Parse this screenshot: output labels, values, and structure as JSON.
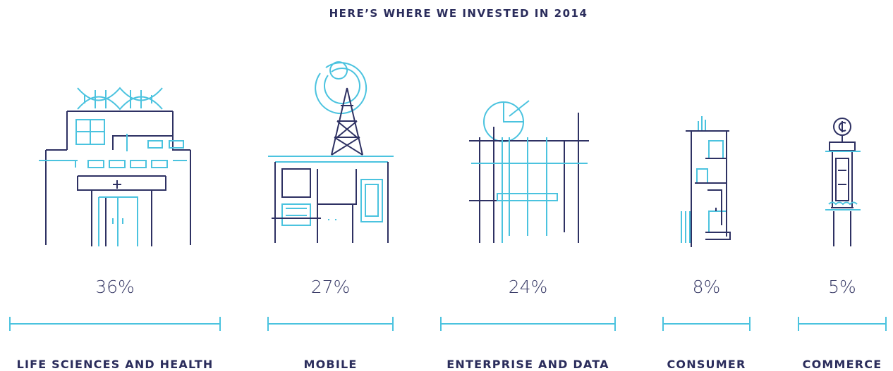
{
  "title": "HERE’S WHERE WE INVESTED IN 2014",
  "items": [
    {
      "percent": "36%",
      "label": "LIFE SCIENCES AND HEALTH"
    },
    {
      "percent": "27%",
      "label": "MOBILE"
    },
    {
      "percent": "24%",
      "label": "ENTERPRISE AND DATA"
    },
    {
      "percent": "8%",
      "label": "CONSUMER"
    },
    {
      "percent": "5%",
      "label": "COMMERCE"
    }
  ]
}
